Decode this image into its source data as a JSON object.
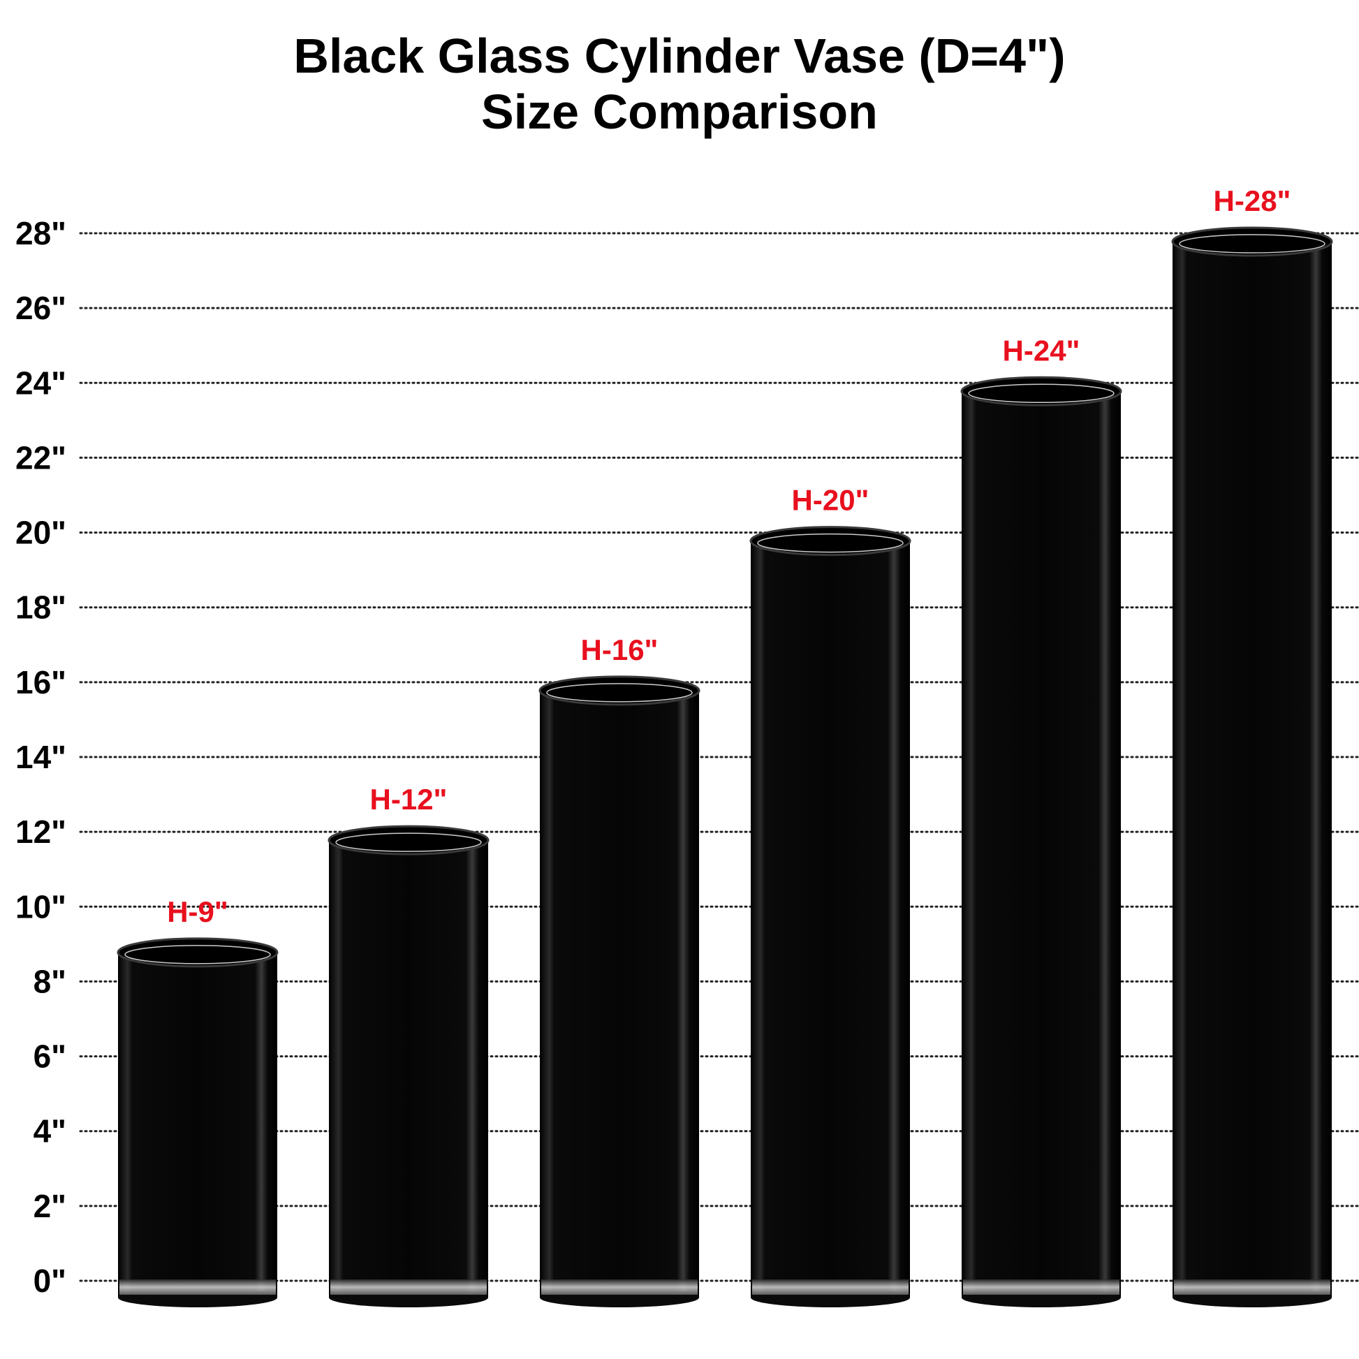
{
  "chart_data": {
    "type": "bar",
    "title": "Black Glass Cylinder Vase (D=4\")",
    "subtitle": "Size Comparison",
    "xlabel": "",
    "ylabel": "",
    "y_tick_labels": [
      "0\"",
      "2\"",
      "4\"",
      "6\"",
      "8\"",
      "10\"",
      "12\"",
      "14\"",
      "16\"",
      "18\"",
      "20\"",
      "22\"",
      "24\"",
      "26\"",
      "28\""
    ],
    "y_ticks": [
      0,
      2,
      4,
      6,
      8,
      10,
      12,
      14,
      16,
      18,
      20,
      22,
      24,
      26,
      28
    ],
    "ylim": [
      0,
      28
    ],
    "grid": "dotted horizontal lines",
    "categories": [
      "H-9\"",
      "H-12\"",
      "H-16\"",
      "H-20\"",
      "H-24\"",
      "H-28\""
    ],
    "values": [
      9,
      12,
      16,
      20,
      24,
      28
    ],
    "colors": {
      "bar": "#050505",
      "label": "#e8101e",
      "grid": "#222222",
      "axis_text": "#000000"
    }
  }
}
